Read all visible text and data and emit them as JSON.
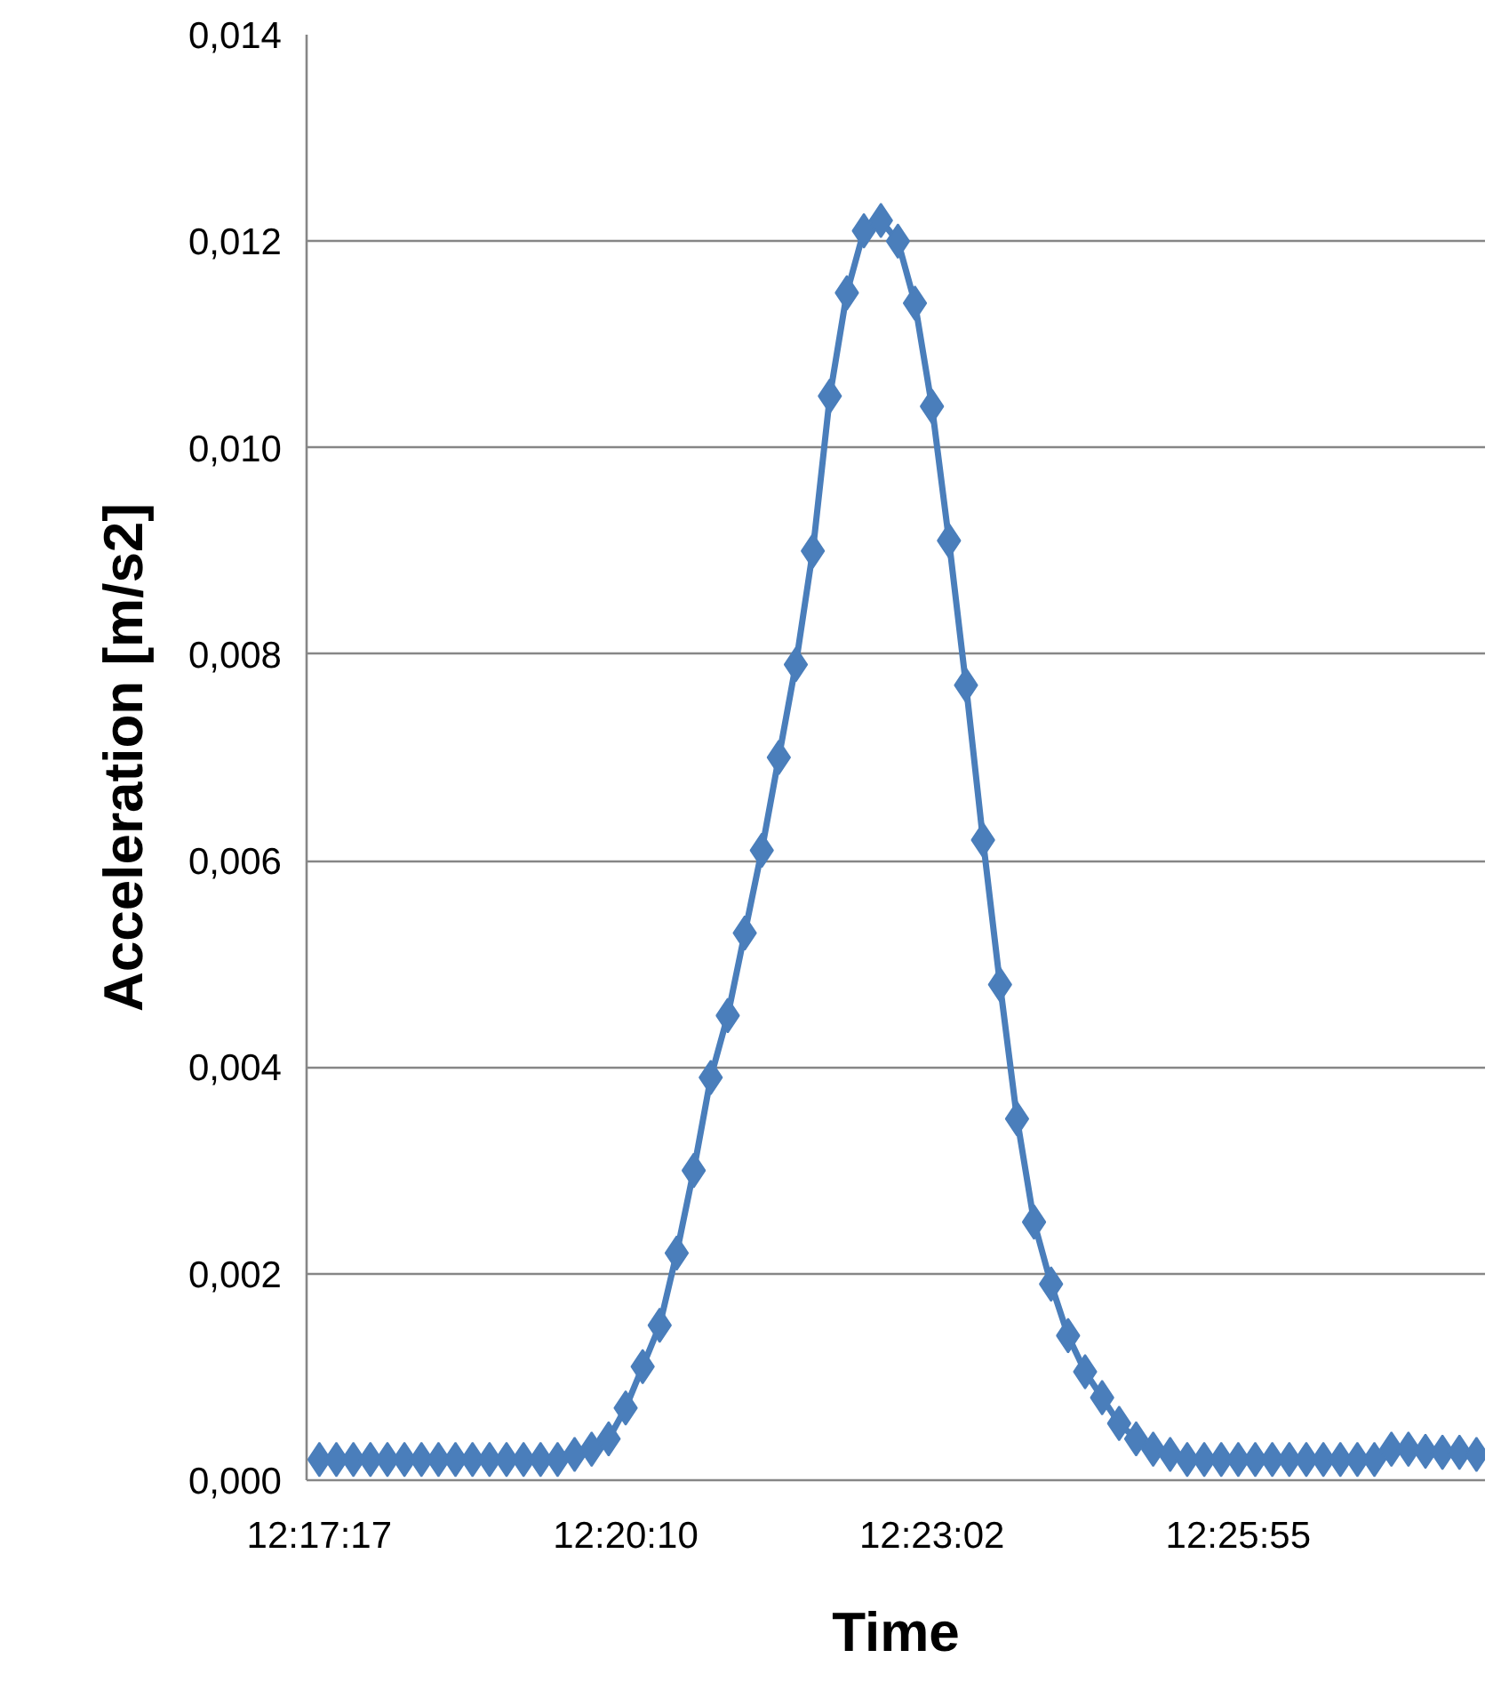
{
  "chart_data": {
    "type": "line",
    "xlabel": "Time",
    "ylabel": "Acceleration [m/s2]",
    "categories": [
      "12:17:17",
      null,
      null,
      null,
      null,
      null,
      null,
      null,
      null,
      null,
      null,
      null,
      null,
      null,
      null,
      null,
      null,
      null,
      "12:20:10",
      null,
      null,
      null,
      null,
      null,
      null,
      null,
      null,
      null,
      null,
      null,
      null,
      null,
      null,
      null,
      null,
      null,
      "12:23:02",
      null,
      null,
      null,
      null,
      null,
      null,
      null,
      null,
      null,
      null,
      null,
      null,
      null,
      null,
      null,
      null,
      null,
      "12:25:55",
      null,
      null,
      null,
      null,
      null,
      null,
      null,
      null,
      null,
      null,
      null,
      null,
      null,
      null
    ],
    "series": [
      {
        "color": "#4a7ebb",
        "values": [
          0.0002,
          0.0002,
          0.0002,
          0.0002,
          0.0002,
          0.0002,
          0.0002,
          0.0002,
          0.0002,
          0.0002,
          0.0002,
          0.0002,
          0.0002,
          0.0002,
          0.0002,
          0.00025,
          0.0003,
          0.0004,
          0.0007,
          0.0011,
          0.0015,
          0.0022,
          0.003,
          0.0039,
          0.0045,
          0.0053,
          0.0061,
          0.007,
          0.0079,
          0.009,
          0.0105,
          0.0115,
          0.0121,
          0.0122,
          0.012,
          0.0114,
          0.0104,
          0.0091,
          0.0077,
          0.0062,
          0.0048,
          0.0035,
          0.0025,
          0.0019,
          0.0014,
          0.00105,
          0.0008,
          0.00055,
          0.0004,
          0.0003,
          0.00025,
          0.0002,
          0.0002,
          0.0002,
          0.0002,
          0.0002,
          0.0002,
          0.0002,
          0.0002,
          0.0002,
          0.0002,
          0.0002,
          0.0002,
          0.0003,
          0.0003,
          0.00028,
          0.00027,
          0.00027,
          0.00025
        ]
      }
    ],
    "ylim": [
      0,
      0.014
    ],
    "yticks": [
      {
        "value": 0,
        "label": "0,000"
      },
      {
        "value": 0.002,
        "label": "0,002"
      },
      {
        "value": 0.004,
        "label": "0,004"
      },
      {
        "value": 0.006,
        "label": "0,006"
      },
      {
        "value": 0.008,
        "label": "0,008"
      },
      {
        "value": 0.01,
        "label": "0,010"
      },
      {
        "value": 0.012,
        "label": "0,012"
      },
      {
        "value": 0.014,
        "label": "0,014"
      }
    ],
    "grid": "y",
    "marker": "diamond",
    "line_style": "solid"
  }
}
